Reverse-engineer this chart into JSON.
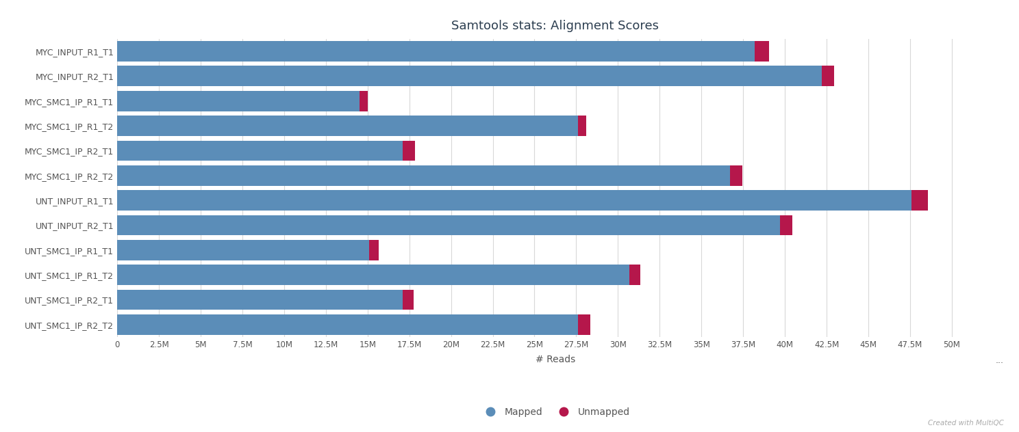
{
  "title": "Samtools stats: Alignment Scores",
  "xlabel": "# Reads",
  "categories": [
    "MYC_INPUT_R1_T1",
    "MYC_INPUT_R2_T1",
    "MYC_SMC1_IP_R1_T1",
    "MYC_SMC1_IP_R1_T2",
    "MYC_SMC1_IP_R2_T1",
    "MYC_SMC1_IP_R2_T2",
    "UNT_INPUT_R1_T1",
    "UNT_INPUT_R2_T1",
    "UNT_SMC1_IP_R1_T1",
    "UNT_SMC1_IP_R1_T2",
    "UNT_SMC1_IP_R2_T1",
    "UNT_SMC1_IP_R2_T2"
  ],
  "mapped": [
    38200000,
    42200000,
    14500000,
    27600000,
    17100000,
    36700000,
    47600000,
    39700000,
    15100000,
    30700000,
    17100000,
    27600000
  ],
  "unmapped": [
    850000,
    750000,
    500000,
    480000,
    750000,
    750000,
    950000,
    750000,
    550000,
    650000,
    650000,
    750000
  ],
  "mapped_color": "#5b8db8",
  "unmapped_color": "#b5174b",
  "bg_color": "#ffffff",
  "grid_color": "#d8d8d8",
  "text_color": "#555555",
  "title_color": "#2c3e50",
  "xlim": [
    0,
    52500000
  ],
  "xtick_vals": [
    0,
    2500000,
    5000000,
    7500000,
    10000000,
    12500000,
    15000000,
    17500000,
    20000000,
    22500000,
    25000000,
    27500000,
    30000000,
    32500000,
    35000000,
    37500000,
    40000000,
    42500000,
    45000000,
    47500000,
    50000000
  ],
  "xtick_labels": [
    "0",
    "2.5M",
    "5M",
    "7.5M",
    "10M",
    "12.5M",
    "15M",
    "17.5M",
    "20M",
    "22.5M",
    "25M",
    "27.5M",
    "30M",
    "32.5M",
    "35M",
    "37.5M",
    "40M",
    "42.5M",
    "45M",
    "47.5M",
    "50M"
  ],
  "watermark": "Created with MultiQC",
  "bar_height": 0.82,
  "legend_mapped": "Mapped",
  "legend_unmapped": "Unmapped"
}
